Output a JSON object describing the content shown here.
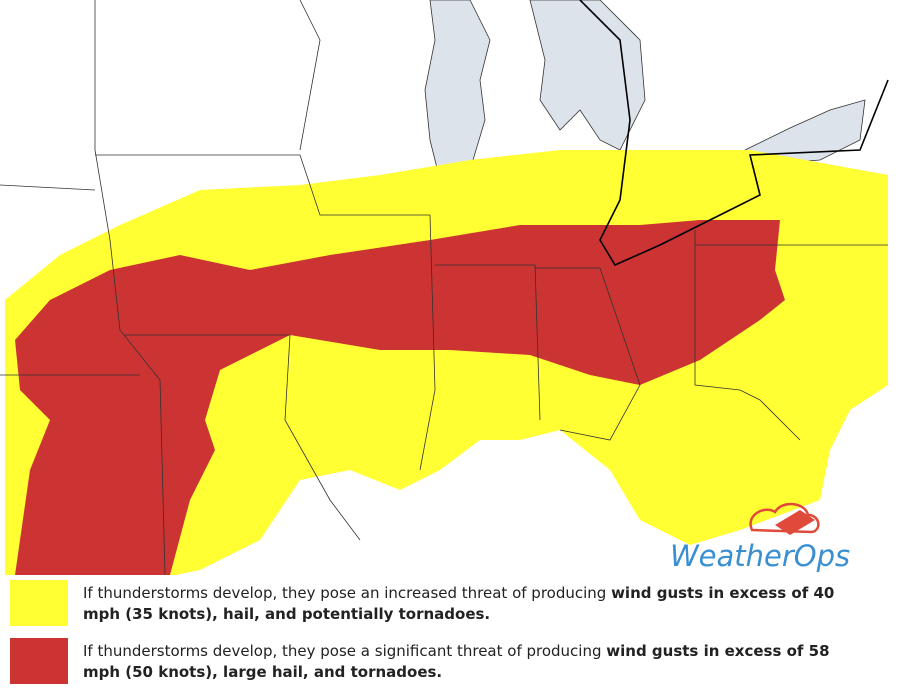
{
  "logo": {
    "text": "WeatherOps"
  },
  "legend": [
    {
      "color": "#ffff33",
      "text_plain": "If thunderstorms develop, they pose an increased threat of producing ",
      "text_bold": "wind gusts in excess of 40 mph (35 knots), hail, and potentially tornadoes."
    },
    {
      "color": "#cc3333",
      "text_plain": "If thunderstorms develop, they pose a significant threat of producing ",
      "text_bold": "wind gusts in excess of 58 mph (50 knots), large hail, and tornadoes."
    }
  ]
}
